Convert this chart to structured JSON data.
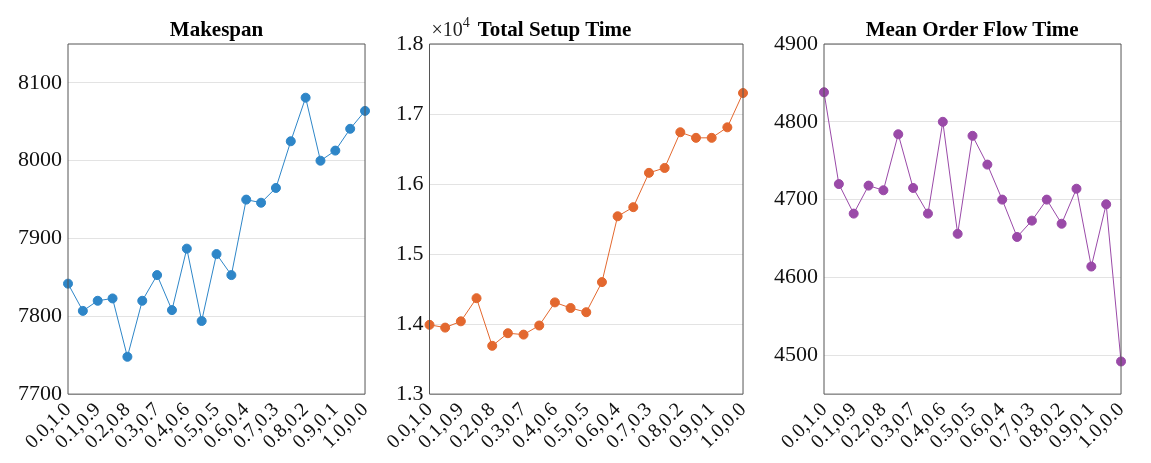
{
  "chart_data": [
    {
      "type": "line",
      "title": "Makespan",
      "categories": [
        "0.0,1.0",
        null,
        "0.1,0.9",
        null,
        "0.2,0.8",
        null,
        "0.3,0.7",
        null,
        "0.4,0.6",
        null,
        "0.5,0.5",
        null,
        "0.6,0.4",
        null,
        "0.7,0.3",
        null,
        "0.8,0.2",
        null,
        "0.9,0.1",
        null,
        "1.0,0.0"
      ],
      "series": [
        {
          "color": "#2e86c8",
          "values": [
            7842,
            7807,
            7820,
            7823,
            7748,
            7820,
            7853,
            7808,
            7887,
            7794,
            7880,
            7853,
            7950,
            7946,
            7965,
            8025,
            8081,
            8000,
            8013,
            8041,
            8064
          ]
        }
      ],
      "ylim": [
        7700,
        8150
      ],
      "yticks": [
        7700,
        7800,
        7900,
        8000,
        8100
      ],
      "grid": "y",
      "marker": "circle"
    },
    {
      "type": "line",
      "title": "Total Setup Time",
      "annotations": [
        "×10$^{4}$"
      ],
      "categories": [
        "0.0,1.0",
        null,
        "0.1,0.9",
        null,
        "0.2,0.8",
        null,
        "0.3,0.7",
        null,
        "0.4,0.6",
        null,
        "0.5,0.5",
        null,
        "0.6,0.4",
        null,
        "0.7,0.3",
        null,
        "0.8,0.2",
        null,
        "0.9,0.1",
        null,
        "1.0,0.0"
      ],
      "series": [
        {
          "color": "#e3682f",
          "values": [
            1.399,
            1.395,
            1.404,
            1.437,
            1.369,
            1.387,
            1.385,
            1.398,
            1.431,
            1.423,
            1.417,
            1.46,
            1.554,
            1.567,
            1.616,
            1.623,
            1.674,
            1.666,
            1.666,
            1.681,
            1.73
          ]
        }
      ],
      "ylim": [
        1.3,
        1.8
      ],
      "yticks": [
        {
          "value": 1.3,
          "label": "1.3"
        },
        {
          "value": 1.4,
          "label": "1.4"
        },
        {
          "value": 1.5,
          "label": "1.5"
        },
        {
          "value": 1.6,
          "label": "1.6"
        },
        {
          "value": 1.7,
          "label": "1.7"
        },
        {
          "value": 1.8,
          "label": "1.8"
        }
      ],
      "grid": "y",
      "marker": "circle"
    },
    {
      "type": "line",
      "title": "Mean Order Flow Time",
      "categories": [
        "0.0,1.0",
        null,
        "0.1,0.9",
        null,
        "0.2,0.8",
        null,
        "0.3,0.7",
        null,
        "0.4,0.6",
        null,
        "0.5,0.5",
        null,
        "0.6,0.4",
        null,
        "0.7,0.3",
        null,
        "0.8,0.2",
        null,
        "0.9,0.1",
        null,
        "1.0,0.0"
      ],
      "series": [
        {
          "color": "#9a4aa8",
          "values": [
            4838,
            4720,
            4682,
            4718,
            4712,
            4784,
            4715,
            4682,
            4800,
            4656,
            4782,
            4745,
            4700,
            4652,
            4673,
            4700,
            4669,
            4714,
            4614,
            4694,
            4492
          ]
        }
      ],
      "ylim": [
        4450,
        4900
      ],
      "yticks": [
        4500,
        4600,
        4700,
        4800,
        4900
      ],
      "grid": "y",
      "marker": "circle"
    }
  ]
}
